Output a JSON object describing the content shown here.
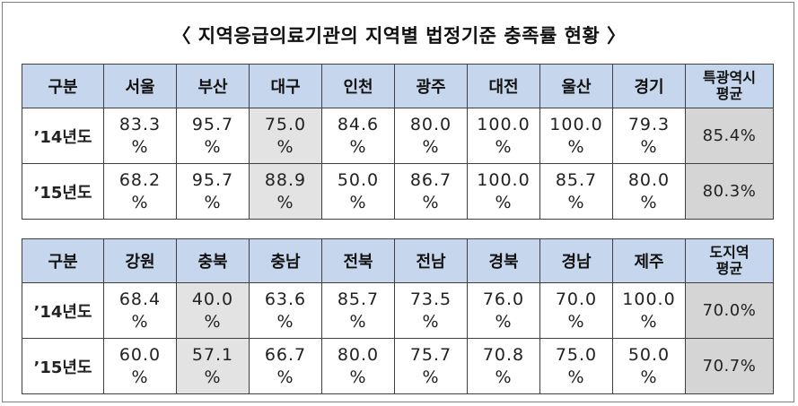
{
  "title": "〈 지역응급의료기관의 지역별 법정기준 충족률 현황 〉",
  "table1": {
    "headers": [
      "구분",
      "서울",
      "부산",
      "대구",
      "인천",
      "광주",
      "대전",
      "울산",
      "경기"
    ],
    "avg_header": [
      "특광역시",
      "평균"
    ],
    "rows": [
      {
        "label": "’14년도",
        "cells": [
          [
            "83.3",
            "%"
          ],
          [
            "95.7",
            "%"
          ],
          [
            "75.0",
            "%"
          ],
          [
            "84.6",
            "%"
          ],
          [
            "80.0",
            "%"
          ],
          [
            "100.0",
            "%"
          ],
          [
            "100.0",
            "%"
          ],
          [
            "79.3",
            "%"
          ]
        ],
        "avg": "85.4%"
      },
      {
        "label": "’15년도",
        "cells": [
          [
            "68.2",
            "%"
          ],
          [
            "95.7",
            "%"
          ],
          [
            "88.9",
            "%"
          ],
          [
            "50.0",
            "%"
          ],
          [
            "86.7",
            "%"
          ],
          [
            "100.0",
            "%"
          ],
          [
            "85.7",
            "%"
          ],
          [
            "80.0",
            "%"
          ]
        ],
        "avg": "80.3%"
      }
    ]
  },
  "table2": {
    "headers": [
      "구분",
      "강원",
      "충북",
      "충남",
      "전북",
      "전남",
      "경북",
      "경남",
      "제주"
    ],
    "avg_header": [
      "도지역",
      "평균"
    ],
    "rows": [
      {
        "label": "’14년도",
        "cells": [
          [
            "68.4",
            "%"
          ],
          [
            "40.0",
            "%"
          ],
          [
            "63.6",
            "%"
          ],
          [
            "85.7",
            "%"
          ],
          [
            "73.5",
            "%"
          ],
          [
            "76.0",
            "%"
          ],
          [
            "70.0",
            "%"
          ],
          [
            "100.0",
            "%"
          ]
        ],
        "avg": "70.0%"
      },
      {
        "label": "’15년도",
        "cells": [
          [
            "60.0",
            "%"
          ],
          [
            "57.1",
            "%"
          ],
          [
            "66.7",
            "%"
          ],
          [
            "80.0",
            "%"
          ],
          [
            "75.7",
            "%"
          ],
          [
            "70.8",
            "%"
          ],
          [
            "75.0",
            "%"
          ],
          [
            "50.0",
            "%"
          ]
        ],
        "avg": "70.7%"
      }
    ]
  },
  "colors": {
    "header_bg": "#c6d6ec",
    "highlight_bg": "#e3e3e3",
    "average_bg": "#d5d5d5",
    "border": "#3f3f3f"
  }
}
